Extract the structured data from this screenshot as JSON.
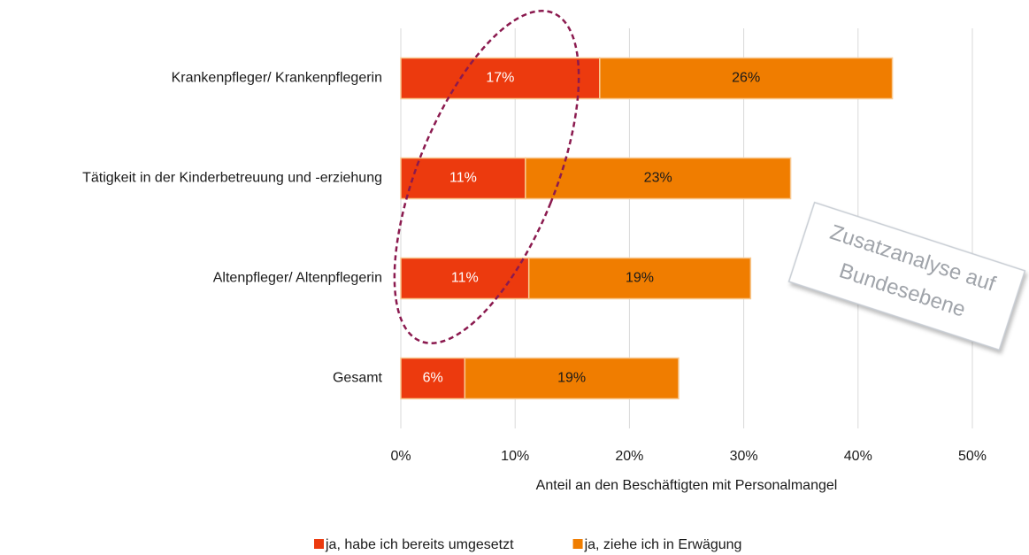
{
  "chart_data": {
    "type": "stacked_barh",
    "categories": [
      "Krankenpfleger/ Krankenpflegerin",
      "Tätigkeit in der Kinderbetreuung und -erziehung",
      "Altenpfleger/ Altenpflegerin",
      "Gesamt"
    ],
    "series": [
      {
        "name": "ja, habe ich bereits umgesetzt",
        "color": "#ec3a0e",
        "text_color": "#ffffff",
        "values": [
          17.4,
          10.9,
          11.2,
          5.6
        ],
        "value_labels": [
          "17%",
          "11%",
          "11%",
          "6%"
        ]
      },
      {
        "name": "ja, ziehe ich in Erwägung",
        "color": "#f07d00",
        "text_color": "#1a1a1a",
        "values": [
          25.6,
          23.2,
          19.4,
          18.7
        ],
        "value_labels": [
          "26%",
          "23%",
          "19%",
          "19%"
        ]
      }
    ],
    "xlim": [
      0,
      50
    ],
    "xticks": [
      {
        "value": 0,
        "label": "0%"
      },
      {
        "value": 10,
        "label": "10%"
      },
      {
        "value": 20,
        "label": "20%"
      },
      {
        "value": 30,
        "label": "30%"
      },
      {
        "value": 40,
        "label": "40%"
      },
      {
        "value": 50,
        "label": "50%"
      }
    ],
    "xlabel": "Anteil an den Beschäftigten mit Personalmangel",
    "grid": true,
    "legend": "bottom",
    "annotation": [
      "Zusatzanalyse auf",
      "Bundesebene"
    ]
  }
}
